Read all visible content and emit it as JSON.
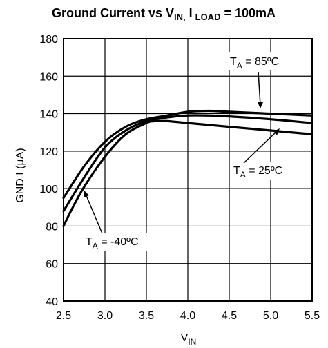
{
  "chart_data": {
    "type": "line",
    "title": "Ground Current vs V",
    "title_parts": {
      "main": "Ground Current vs V",
      "sub1": "IN,",
      "mid": " I",
      "sub2": "LOAD",
      "tail": " = 100mA"
    },
    "xlabel": "V",
    "xlabel_sub": "IN",
    "ylabel": "GND I (µA)",
    "xlim": [
      2.5,
      5.5
    ],
    "ylim": [
      40,
      180
    ],
    "xticks": [
      2.5,
      3.0,
      3.5,
      4.0,
      4.5,
      5.0,
      5.5
    ],
    "xtick_labels": [
      "2.5",
      "3.0",
      "3.5",
      "4.0",
      "4.5",
      "5.0",
      "5.5"
    ],
    "yticks": [
      40,
      60,
      80,
      100,
      120,
      140,
      160,
      180
    ],
    "ytick_labels": [
      "40",
      "60",
      "80",
      "100",
      "120",
      "140",
      "160",
      "180"
    ],
    "grid": true,
    "line_color": "#000000",
    "series": [
      {
        "name": "TA = -40ºC",
        "x": [
          2.5,
          2.6,
          2.75,
          3.0,
          3.25,
          3.5,
          3.6,
          3.75,
          4.0,
          4.25,
          4.5,
          5.0,
          5.5
        ],
        "y": [
          80,
          89,
          101,
          117,
          129,
          135,
          136,
          136,
          135,
          134,
          133,
          131,
          129
        ]
      },
      {
        "name": "TA = 25ºC",
        "x": [
          2.5,
          2.75,
          3.0,
          3.25,
          3.5,
          3.75,
          4.0,
          4.25,
          4.5,
          5.0,
          5.5
        ],
        "y": [
          88,
          106,
          122,
          131,
          136,
          138,
          139,
          139,
          138.5,
          137,
          135
        ]
      },
      {
        "name": "TA = 85ºC",
        "x": [
          2.5,
          2.75,
          3.0,
          3.25,
          3.5,
          3.75,
          4.0,
          4.25,
          4.5,
          5.0,
          5.5
        ],
        "y": [
          95,
          112,
          125,
          133,
          137,
          139,
          141,
          141.5,
          141,
          140,
          139
        ]
      }
    ],
    "annotations": [
      {
        "prefix": "T",
        "sub": "A",
        "text": " = 85ºC"
      },
      {
        "prefix": "T",
        "sub": "A",
        "text": " = 25ºC"
      },
      {
        "prefix": "T",
        "sub": "A",
        "text": " = -40ºC"
      }
    ]
  }
}
